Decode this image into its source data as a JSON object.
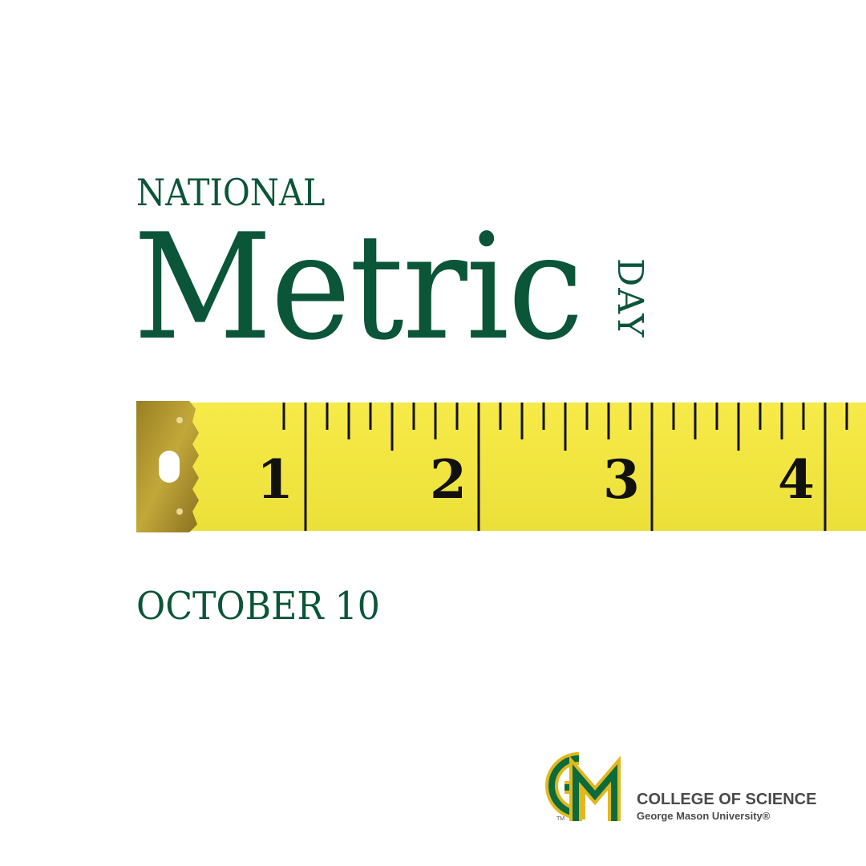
{
  "heading": {
    "national": "NATIONAL",
    "metric": "Metric",
    "day": "DAY"
  },
  "date": "OCTOBER 10",
  "tape": {
    "numbers": [
      "1",
      "2",
      "3",
      "4"
    ],
    "tape_color": "#f2e540",
    "clip_color": "#b39a2c",
    "tick_color": "#111111"
  },
  "logo": {
    "mark": "GM",
    "tm": "TM",
    "college": "COLLEGE OF SCIENCE",
    "university": "George Mason University®",
    "green": "#0b6b3a",
    "gold": "#e1b81f"
  },
  "colors": {
    "text_green": "#0b5538",
    "background": "#ffffff"
  }
}
